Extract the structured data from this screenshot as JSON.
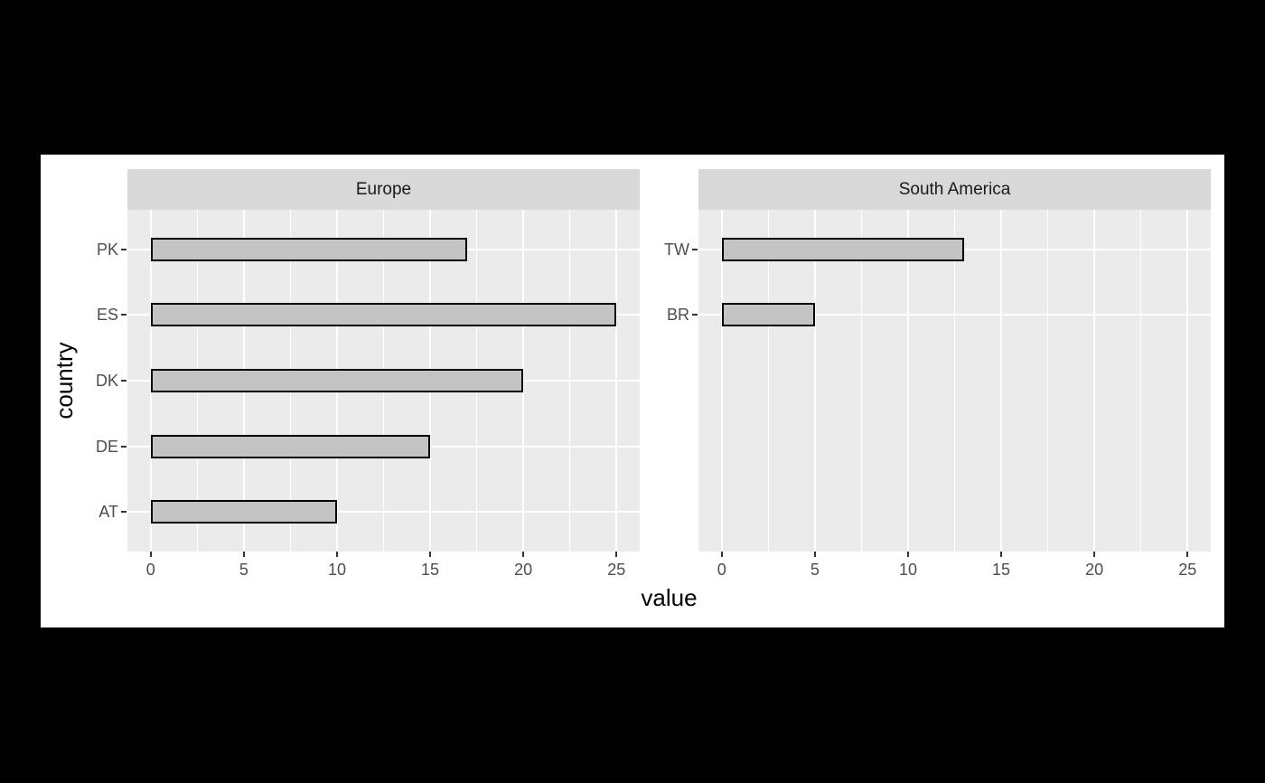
{
  "page": {
    "background": "#000000",
    "plot_background": "#ffffff"
  },
  "chart_data": {
    "type": "bar",
    "orientation": "horizontal",
    "xlabel": "value",
    "ylabel": "country",
    "x_ticks": [
      0,
      5,
      10,
      15,
      20,
      25
    ],
    "x_minor_ticks": [
      2.5,
      7.5,
      12.5,
      17.5,
      22.5
    ],
    "xlim": [
      -1.25,
      26.25
    ],
    "rows_per_panel": 5,
    "grid": "on",
    "legend": "none",
    "facets": [
      {
        "label": "Europe",
        "categories": [
          "PK",
          "ES",
          "DK",
          "DE",
          "AT"
        ],
        "values": [
          17,
          25,
          20,
          15,
          10
        ]
      },
      {
        "label": "South America",
        "categories": [
          "TW",
          "BR"
        ],
        "values": [
          13,
          5
        ]
      }
    ],
    "colors": {
      "panel_bg": "#EBEBEB",
      "strip_bg": "#D9D9D9",
      "strip_text": "#1A1A1A",
      "grid": "#FFFFFF",
      "bar_fill": "#C3C3C3",
      "bar_border": "#000000",
      "tick_label": "#4D4D4D",
      "tick_mark": "#333333",
      "axis_title": "#000000"
    }
  }
}
